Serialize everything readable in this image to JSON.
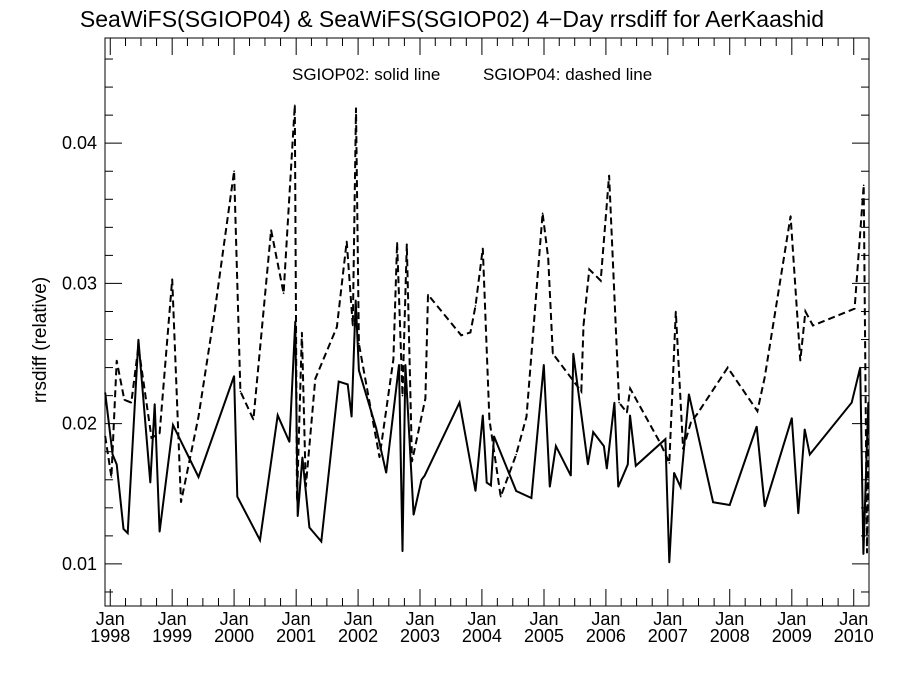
{
  "chart_data": {
    "type": "line",
    "title": "SeaWiFS(SGIOP04) & SeaWiFS(SGIOP02) 4−Day rrsdiff for AerKaashid",
    "ylabel": "rrsdiff (relative)",
    "xlabel": "",
    "annotation_solid": "SGIOP02: solid line",
    "annotation_dashed": "SGIOP04: dashed line",
    "xlim": [
      "1997-12-01",
      "2010-04-01"
    ],
    "ylim": [
      0.007,
      0.0475
    ],
    "yticks": [
      0.01,
      0.02,
      0.03,
      0.04
    ],
    "ytick_labels": [
      "0.01",
      "0.02",
      "0.03",
      "0.04"
    ],
    "xticks": [
      {
        "date": "1998-01-01",
        "month": "Jan",
        "year": "1998"
      },
      {
        "date": "1999-01-01",
        "month": "Jan",
        "year": "1999"
      },
      {
        "date": "2000-01-01",
        "month": "Jan",
        "year": "2000"
      },
      {
        "date": "2001-01-01",
        "month": "Jan",
        "year": "2001"
      },
      {
        "date": "2002-01-01",
        "month": "Jan",
        "year": "2002"
      },
      {
        "date": "2003-01-01",
        "month": "Jan",
        "year": "2003"
      },
      {
        "date": "2004-01-01",
        "month": "Jan",
        "year": "2004"
      },
      {
        "date": "2005-01-01",
        "month": "Jan",
        "year": "2005"
      },
      {
        "date": "2006-01-01",
        "month": "Jan",
        "year": "2006"
      },
      {
        "date": "2007-01-01",
        "month": "Jan",
        "year": "2007"
      },
      {
        "date": "2008-01-01",
        "month": "Jan",
        "year": "2008"
      },
      {
        "date": "2009-01-01",
        "month": "Jan",
        "year": "2009"
      },
      {
        "date": "2010-01-01",
        "month": "Jan",
        "year": "2010"
      }
    ],
    "grid": false,
    "series": [
      {
        "name": "SGIOP02",
        "style": "solid",
        "color": "#000000",
        "points": [
          [
            "1997-12-02",
            0.0222
          ],
          [
            "1998-01-15",
            0.0178
          ],
          [
            "1998-02-08",
            0.0171
          ],
          [
            "1998-03-20",
            0.0125
          ],
          [
            "1998-04-14",
            0.0122
          ],
          [
            "1998-06-16",
            0.026
          ],
          [
            "1998-08-25",
            0.0158
          ],
          [
            "1998-09-20",
            0.0214
          ],
          [
            "1998-10-19",
            0.0123
          ],
          [
            "1999-01-06",
            0.0199
          ],
          [
            "1999-06-05",
            0.0162
          ],
          [
            "2000-01-01",
            0.0234
          ],
          [
            "2000-01-20",
            0.0148
          ],
          [
            "2000-06-02",
            0.0117
          ],
          [
            "2000-09-14",
            0.0206
          ],
          [
            "2000-11-22",
            0.0187
          ],
          [
            "2000-12-27",
            0.0273
          ],
          [
            "2001-01-10",
            0.0134
          ],
          [
            "2001-02-07",
            0.0176
          ],
          [
            "2001-03-20",
            0.0126
          ],
          [
            "2001-05-29",
            0.0116
          ],
          [
            "2001-09-09",
            0.023
          ],
          [
            "2001-11-01",
            0.0228
          ],
          [
            "2001-11-24",
            0.0205
          ],
          [
            "2001-12-18",
            0.0288
          ],
          [
            "2002-01-06",
            0.0238
          ],
          [
            "2002-04-17",
            0.0197
          ],
          [
            "2002-06-16",
            0.0165
          ],
          [
            "2002-08-30",
            0.0242
          ],
          [
            "2002-09-20",
            0.0109
          ],
          [
            "2002-10-07",
            0.0242
          ],
          [
            "2002-11-24",
            0.0135
          ],
          [
            "2003-01-10",
            0.016
          ],
          [
            "2003-01-29",
            0.0163
          ],
          [
            "2003-08-22",
            0.0215
          ],
          [
            "2003-11-24",
            0.0152
          ],
          [
            "2004-01-06",
            0.0206
          ],
          [
            "2004-01-29",
            0.0158
          ],
          [
            "2004-02-23",
            0.0156
          ],
          [
            "2004-03-12",
            0.0191
          ],
          [
            "2004-07-21",
            0.0152
          ],
          [
            "2004-10-19",
            0.0147
          ],
          [
            "2004-12-31",
            0.0242
          ],
          [
            "2005-02-04",
            0.0155
          ],
          [
            "2005-03-12",
            0.0184
          ],
          [
            "2005-06-08",
            0.0163
          ],
          [
            "2005-06-23",
            0.025
          ],
          [
            "2005-09-17",
            0.0171
          ],
          [
            "2005-10-18",
            0.0194
          ],
          [
            "2005-12-20",
            0.0184
          ],
          [
            "2006-01-06",
            0.0168
          ],
          [
            "2006-02-20",
            0.0215
          ],
          [
            "2006-03-15",
            0.0155
          ],
          [
            "2006-05-10",
            0.0171
          ],
          [
            "2006-05-23",
            0.0206
          ],
          [
            "2006-06-26",
            0.017
          ],
          [
            "2006-12-18",
            0.0189
          ],
          [
            "2007-01-10",
            0.0101
          ],
          [
            "2007-02-07",
            0.0165
          ],
          [
            "2007-03-17",
            0.0155
          ],
          [
            "2007-05-05",
            0.0221
          ],
          [
            "2007-09-25",
            0.0144
          ],
          [
            "2008-01-01",
            0.0142
          ],
          [
            "2008-06-08",
            0.0198
          ],
          [
            "2008-07-25",
            0.0141
          ],
          [
            "2009-01-01",
            0.0204
          ],
          [
            "2009-02-08",
            0.0136
          ],
          [
            "2009-03-18",
            0.0196
          ],
          [
            "2009-04-17",
            0.0178
          ],
          [
            "2009-12-20",
            0.0215
          ],
          [
            "2010-02-08",
            0.024
          ],
          [
            "2010-02-27",
            0.0107
          ],
          [
            "2010-03-28",
            0.0215
          ]
        ]
      },
      {
        "name": "SGIOP04",
        "style": "dashed",
        "color": "#000000",
        "points": [
          [
            "1997-12-02",
            0.0191
          ],
          [
            "1998-01-08",
            0.0162
          ],
          [
            "1998-02-08",
            0.0245
          ],
          [
            "1998-03-25",
            0.0217
          ],
          [
            "1998-05-05",
            0.0215
          ],
          [
            "1998-06-16",
            0.0255
          ],
          [
            "1998-09-01",
            0.019
          ],
          [
            "1998-10-19",
            0.0193
          ],
          [
            "1999-01-01",
            0.0303
          ],
          [
            "1999-02-22",
            0.0144
          ],
          [
            "1999-06-05",
            0.0205
          ],
          [
            "1999-09-09",
            0.028
          ],
          [
            "2000-01-01",
            0.038
          ],
          [
            "2000-02-07",
            0.0223
          ],
          [
            "2000-04-24",
            0.0203
          ],
          [
            "2000-08-06",
            0.0338
          ],
          [
            "2000-10-19",
            0.0293
          ],
          [
            "2000-12-24",
            0.0427
          ],
          [
            "2001-01-06",
            0.0145
          ],
          [
            "2001-02-04",
            0.0265
          ],
          [
            "2001-02-27",
            0.0155
          ],
          [
            "2001-04-24",
            0.0232
          ],
          [
            "2001-08-29",
            0.0269
          ],
          [
            "2001-10-26",
            0.033
          ],
          [
            "2001-12-01",
            0.027
          ],
          [
            "2001-12-20",
            0.0425
          ],
          [
            "2002-01-06",
            0.0257
          ],
          [
            "2002-05-07",
            0.0176
          ],
          [
            "2002-07-28",
            0.0246
          ],
          [
            "2002-08-19",
            0.0329
          ],
          [
            "2002-09-20",
            0.022
          ],
          [
            "2002-10-15",
            0.0328
          ],
          [
            "2002-11-15",
            0.0173
          ],
          [
            "2003-02-02",
            0.0218
          ],
          [
            "2003-02-17",
            0.0292
          ],
          [
            "2003-09-01",
            0.0263
          ],
          [
            "2003-10-25",
            0.0265
          ],
          [
            "2003-11-24",
            0.0284
          ],
          [
            "2004-01-06",
            0.0325
          ],
          [
            "2004-02-14",
            0.0203
          ],
          [
            "2004-04-21",
            0.0148
          ],
          [
            "2004-07-21",
            0.0178
          ],
          [
            "2004-09-20",
            0.0205
          ],
          [
            "2004-12-24",
            0.035
          ],
          [
            "2005-01-26",
            0.0318
          ],
          [
            "2005-02-22",
            0.025
          ],
          [
            "2005-08-09",
            0.0223
          ],
          [
            "2005-08-22",
            0.027
          ],
          [
            "2005-09-25",
            0.031
          ],
          [
            "2005-12-01",
            0.0302
          ],
          [
            "2006-01-20",
            0.0377
          ],
          [
            "2006-03-20",
            0.0215
          ],
          [
            "2006-05-05",
            0.0208
          ],
          [
            "2006-05-24",
            0.0225
          ],
          [
            "2006-11-18",
            0.0186
          ],
          [
            "2007-01-10",
            0.0172
          ],
          [
            "2007-02-17",
            0.028
          ],
          [
            "2007-04-01",
            0.0182
          ],
          [
            "2007-05-17",
            0.0201
          ],
          [
            "2007-06-24",
            0.0207
          ],
          [
            "2007-12-20",
            0.024
          ],
          [
            "2008-06-12",
            0.0209
          ],
          [
            "2008-07-25",
            0.0233
          ],
          [
            "2008-12-25",
            0.0348
          ],
          [
            "2009-02-20",
            0.0245
          ],
          [
            "2009-03-22",
            0.028
          ],
          [
            "2009-05-05",
            0.027
          ],
          [
            "2010-01-06",
            0.0282
          ],
          [
            "2010-03-01",
            0.037
          ],
          [
            "2010-03-20",
            0.0108
          ],
          [
            "2010-03-28",
            0.0205
          ]
        ]
      }
    ]
  }
}
